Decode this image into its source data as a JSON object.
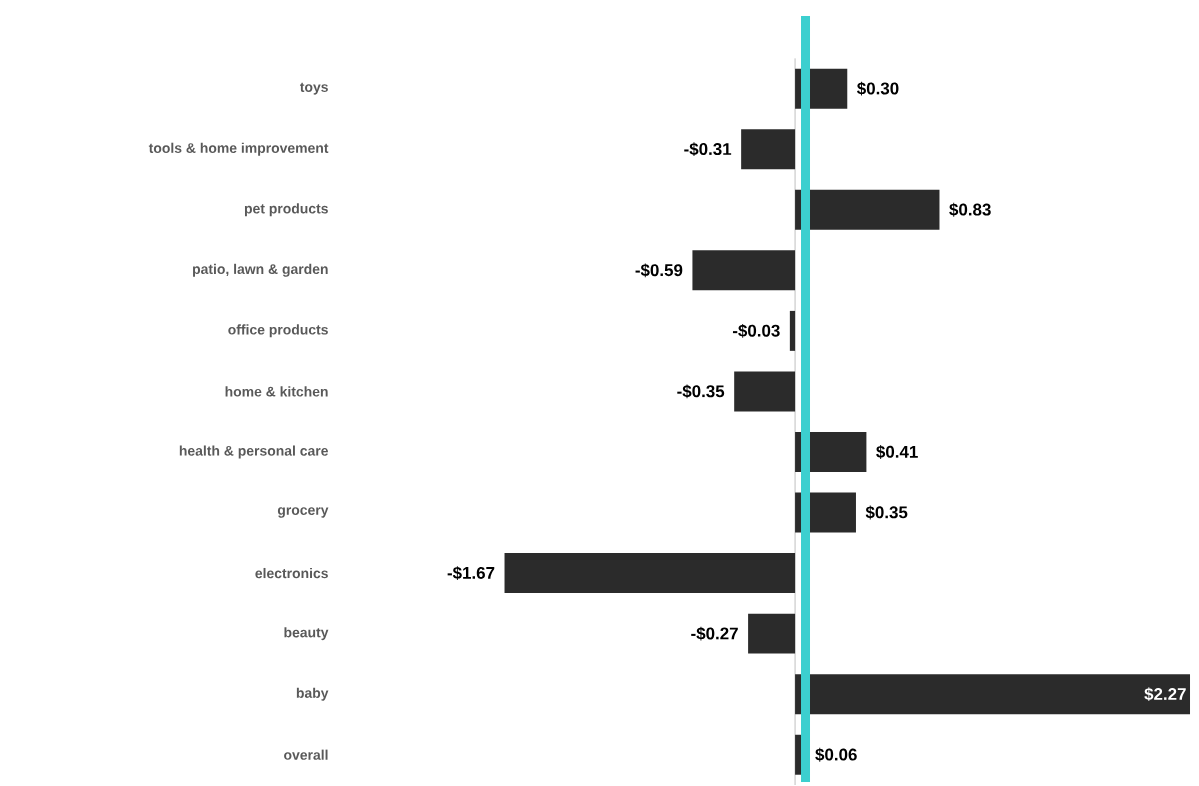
{
  "chart_data": {
    "type": "bar",
    "orientation": "horizontal",
    "categories": [
      "toys",
      "tools & home improvement",
      "pet products",
      "patio, lawn & garden",
      "office products",
      "home & kitchen",
      "health & personal care",
      "grocery",
      "electronics",
      "beauty",
      "baby",
      "overall"
    ],
    "values": [
      0.3,
      -0.31,
      0.83,
      -0.59,
      -0.03,
      -0.35,
      0.41,
      0.35,
      -1.67,
      -0.27,
      2.27,
      0.06
    ],
    "value_labels": [
      "$0.30",
      "-$0.31",
      "$0.83",
      "-$0.59",
      "-$0.03",
      "-$0.35",
      "$0.41",
      "$0.35",
      "-$1.67",
      "-$0.27",
      "$2.27",
      "$0.06"
    ],
    "color": "#2b2b2b",
    "ref_lines": [
      {
        "axis": "x",
        "value": 0.06,
        "color": "#3ccfcf"
      }
    ]
  }
}
